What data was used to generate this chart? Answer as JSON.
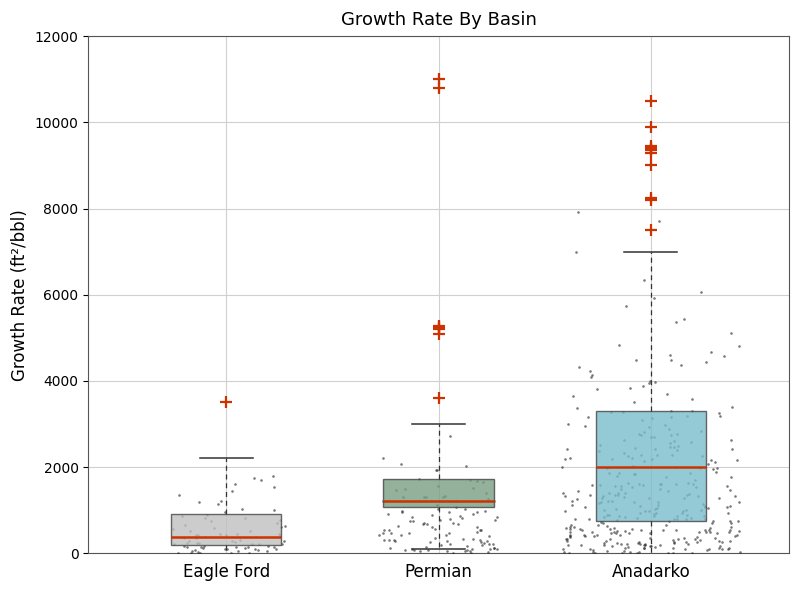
{
  "title": "Growth Rate By Basin",
  "ylabel": "Growth Rate (ft²/bbl)",
  "categories": [
    "Eagle Ford",
    "Permian",
    "Anadarko"
  ],
  "ylim": [
    0,
    12000
  ],
  "yticks": [
    0,
    2000,
    4000,
    6000,
    8000,
    10000,
    12000
  ],
  "box_colors": [
    "#c0c0c0",
    "#7a9e82",
    "#7abccc"
  ],
  "median_color": "#cc3300",
  "whisker_color": "#333333",
  "outlier_color": "#cc3300",
  "dot_color": "#222222",
  "background_color": "#ffffff",
  "grid_color": "#d0d0d0",
  "eagle_ford": {
    "q1": 180,
    "median": 380,
    "q3": 920,
    "whisker_low": 0,
    "whisker_high": 2200,
    "outliers": [
      3500
    ],
    "n_dots": 75,
    "dot_spread": 0.28,
    "dot_ylow": 0,
    "dot_yhigh": 2000,
    "dot_scale": 400
  },
  "permian": {
    "q1": 1080,
    "median": 1200,
    "q3": 1720,
    "whisker_low": 100,
    "whisker_high": 3000,
    "outliers": [
      3600,
      5080,
      5200,
      5250,
      5280,
      10800,
      11000
    ],
    "n_dots": 105,
    "dot_spread": 0.28,
    "dot_ylow": 0,
    "dot_yhigh": 3000,
    "dot_scale": 800
  },
  "anadarko": {
    "q1": 750,
    "median": 2000,
    "q3": 3300,
    "whisker_low": 0,
    "whisker_high": 7000,
    "outliers": [
      7500,
      8200,
      8250,
      9000,
      9300,
      9350,
      9400,
      9450,
      9900,
      10500
    ],
    "n_dots": 320,
    "dot_spread": 0.42,
    "dot_ylow": 0,
    "dot_yhigh": 9500,
    "dot_scale": 1500
  }
}
